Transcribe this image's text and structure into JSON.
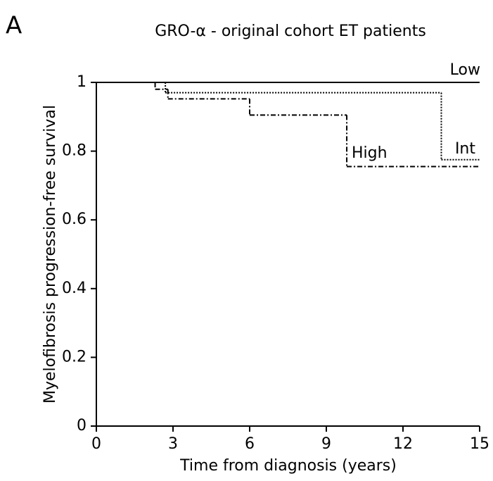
{
  "panel_label": "A",
  "chart_data": {
    "type": "survival",
    "title": "GRO-α - original cohort ET patients",
    "x_label": "Time from diagnosis (years)",
    "y_label": "Myelofibrosis progression-free survival",
    "xlim": [
      0,
      15
    ],
    "ylim": [
      0,
      1
    ],
    "xticks": [
      0,
      3,
      6,
      9,
      12,
      15
    ],
    "yticks": [
      0,
      0.2,
      0.4,
      0.6,
      0.8,
      1
    ],
    "series": [
      {
        "name": "Low",
        "color": "#000000",
        "linestyle": "solid",
        "x": [
          0
        ],
        "values": [
          1
        ]
      },
      {
        "name": "Int",
        "color": "#000000",
        "linestyle": "dotted",
        "x": [
          0,
          2.7,
          13.5
        ],
        "values": [
          1,
          0.97,
          0.775
        ]
      },
      {
        "name": "High",
        "color": "#000000",
        "linestyle": "dashdot",
        "x": [
          0,
          2.3,
          2.8,
          6,
          9.8
        ],
        "values": [
          1,
          0.98,
          0.952,
          0.905,
          0.755
        ]
      }
    ]
  }
}
